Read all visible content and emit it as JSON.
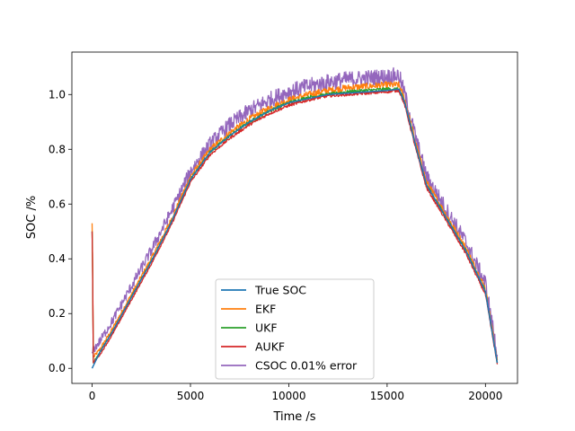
{
  "chart_data": {
    "type": "line",
    "title": "",
    "xlabel": "Time /s",
    "ylabel": "SOC /%",
    "xlim": [
      -1030,
      21630
    ],
    "ylim": [
      -0.055,
      1.155
    ],
    "x_ticks": [
      0,
      5000,
      10000,
      15000,
      20000
    ],
    "x_tick_labels": [
      "0",
      "5000",
      "10000",
      "15000",
      "20000"
    ],
    "y_ticks": [
      0.0,
      0.2,
      0.4,
      0.6,
      0.8,
      1.0
    ],
    "y_tick_labels": [
      "0.0",
      "0.2",
      "0.4",
      "0.6",
      "0.8",
      "1.0"
    ],
    "grid": false,
    "legend_position": "bottom-center",
    "series": [
      {
        "name": "True SOC",
        "color": "#1f77b4",
        "noise": 0.0,
        "x": [
          0,
          400,
          1000,
          2000,
          3000,
          4000,
          5000,
          6000,
          7000,
          8000,
          9000,
          10000,
          11000,
          12000,
          13000,
          14000,
          15000,
          15600,
          15900,
          16500,
          17000,
          17500,
          18000,
          19000,
          20000,
          20600
        ],
        "y": [
          0.0,
          0.06,
          0.13,
          0.26,
          0.39,
          0.53,
          0.69,
          0.79,
          0.85,
          0.9,
          0.94,
          0.97,
          0.985,
          1.0,
          1.005,
          1.01,
          1.015,
          1.02,
          0.97,
          0.8,
          0.67,
          0.61,
          0.55,
          0.43,
          0.28,
          0.02
        ]
      },
      {
        "name": "EKF",
        "color": "#ff7f0e",
        "noise": 0.012,
        "x": [
          0,
          15,
          60,
          400,
          1000,
          2000,
          3000,
          4000,
          5000,
          6000,
          7000,
          8000,
          9000,
          10000,
          11000,
          12000,
          13000,
          14000,
          15000,
          15600,
          15900,
          16500,
          17000,
          17500,
          18000,
          19000,
          20000,
          20600
        ],
        "y": [
          0.53,
          0.44,
          0.04,
          0.07,
          0.14,
          0.27,
          0.4,
          0.54,
          0.7,
          0.8,
          0.86,
          0.91,
          0.95,
          0.98,
          1.0,
          1.015,
          1.025,
          1.03,
          1.035,
          1.035,
          0.98,
          0.81,
          0.68,
          0.62,
          0.56,
          0.44,
          0.29,
          0.03
        ]
      },
      {
        "name": "UKF",
        "color": "#2ca02c",
        "noise": 0.006,
        "x": [
          0,
          15,
          60,
          400,
          1000,
          2000,
          3000,
          4000,
          5000,
          6000,
          7000,
          8000,
          9000,
          10000,
          11000,
          12000,
          13000,
          14000,
          15000,
          15600,
          15900,
          16500,
          17000,
          17500,
          18000,
          19000,
          20000,
          20600
        ],
        "y": [
          0.5,
          0.42,
          0.02,
          0.06,
          0.13,
          0.26,
          0.39,
          0.53,
          0.69,
          0.79,
          0.85,
          0.9,
          0.94,
          0.97,
          0.99,
          1.0,
          1.01,
          1.015,
          1.02,
          1.02,
          0.97,
          0.8,
          0.67,
          0.61,
          0.55,
          0.43,
          0.28,
          0.02
        ]
      },
      {
        "name": "AUKF",
        "color": "#d62728",
        "noise": 0.005,
        "x": [
          0,
          15,
          60,
          400,
          1000,
          2000,
          3000,
          4000,
          5000,
          6000,
          7000,
          8000,
          9000,
          10000,
          11000,
          12000,
          13000,
          14000,
          15000,
          15600,
          15900,
          16500,
          17000,
          17500,
          18000,
          19000,
          20000,
          20600
        ],
        "y": [
          0.5,
          0.42,
          0.02,
          0.05,
          0.12,
          0.25,
          0.38,
          0.52,
          0.68,
          0.78,
          0.84,
          0.89,
          0.93,
          0.96,
          0.98,
          0.995,
          1.0,
          1.005,
          1.01,
          1.015,
          0.96,
          0.79,
          0.66,
          0.6,
          0.54,
          0.42,
          0.27,
          0.015
        ]
      },
      {
        "name": "CSOC 0.01% error",
        "color": "#9467bd",
        "noise": 0.03,
        "x": [
          0,
          400,
          1000,
          2000,
          3000,
          4000,
          5000,
          6000,
          7000,
          8000,
          9000,
          10000,
          11000,
          12000,
          13000,
          14000,
          15000,
          15600,
          15900,
          16500,
          17000,
          17500,
          18000,
          19000,
          20000,
          20600
        ],
        "y": [
          0.06,
          0.1,
          0.17,
          0.3,
          0.43,
          0.57,
          0.72,
          0.82,
          0.89,
          0.94,
          0.98,
          1.01,
          1.03,
          1.045,
          1.055,
          1.06,
          1.065,
          1.07,
          1.0,
          0.83,
          0.7,
          0.64,
          0.58,
          0.46,
          0.31,
          0.05
        ]
      }
    ]
  }
}
